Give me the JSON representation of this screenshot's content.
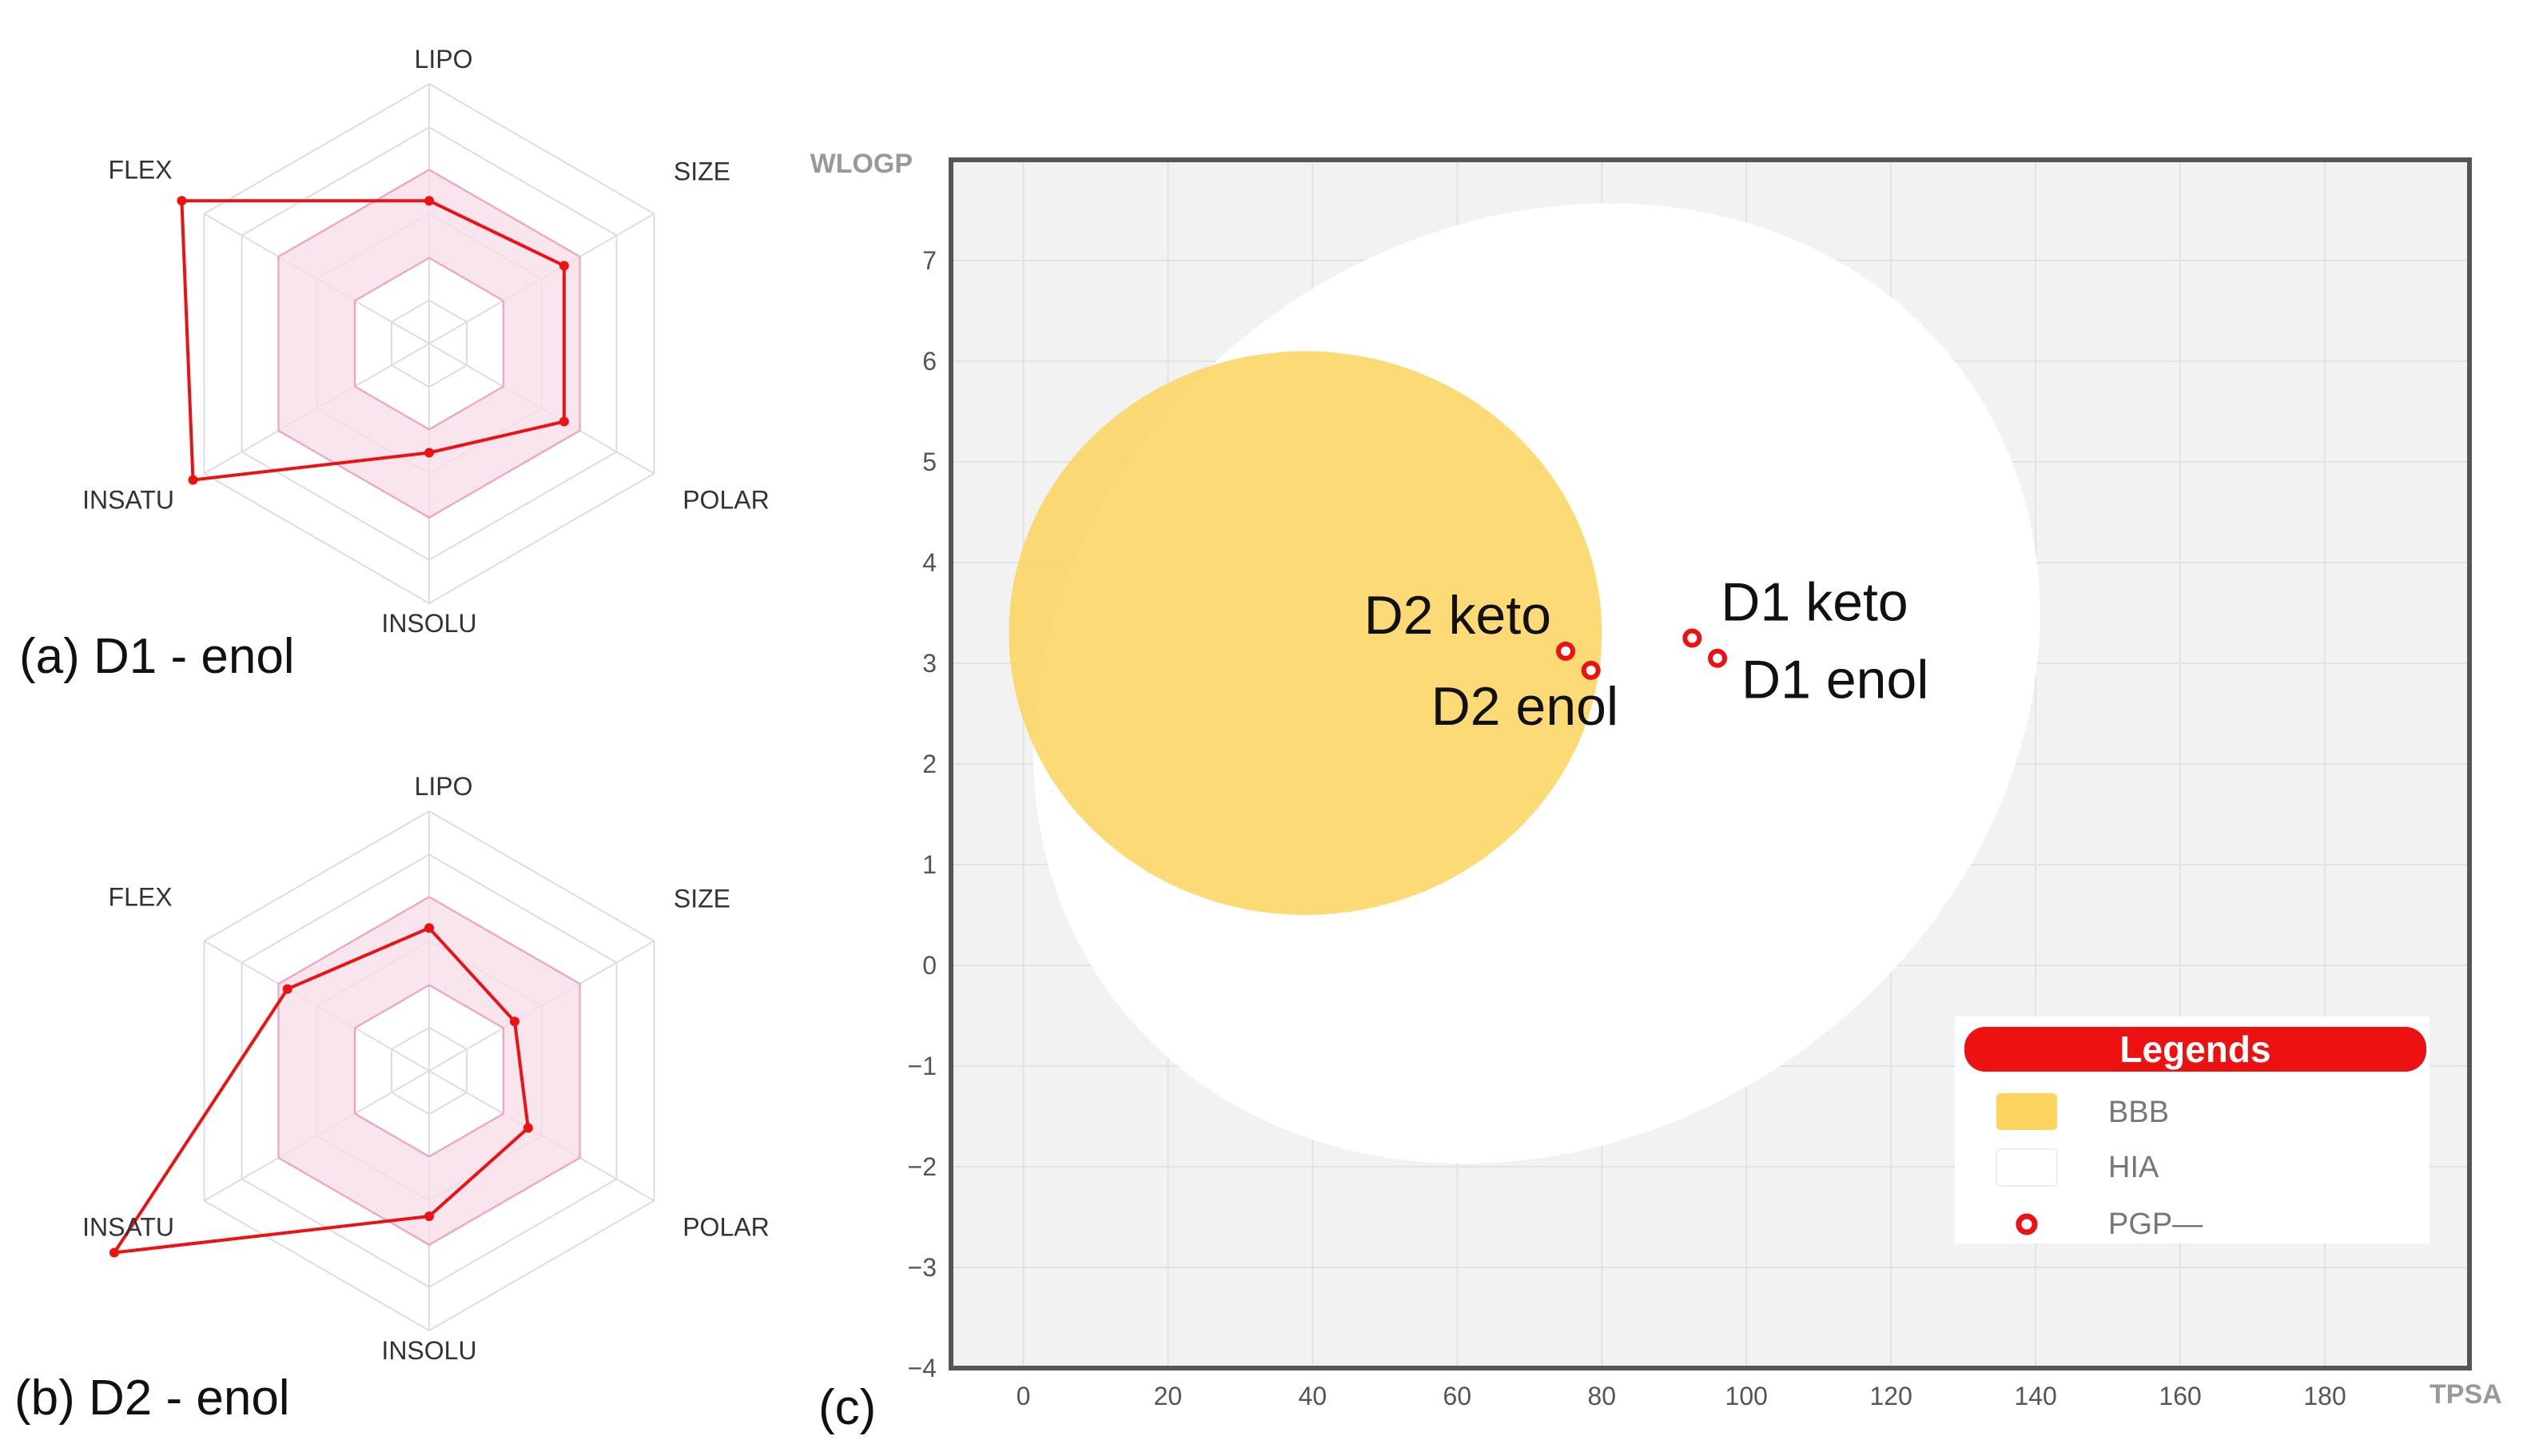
{
  "chart_data": [
    {
      "type": "radar",
      "panel_label": "(a) D1 - enol",
      "axes": [
        "LIPO",
        "SIZE",
        "POLAR",
        "INSOLU",
        "INSATU",
        "FLEX"
      ],
      "values": [
        0.55,
        0.6,
        0.6,
        0.42,
        1.05,
        1.1
      ],
      "optimal_range": [
        0.33,
        0.67
      ]
    },
    {
      "type": "radar",
      "panel_label": "(b) D2 - enol",
      "axes": [
        "LIPO",
        "SIZE",
        "POLAR",
        "INSOLU",
        "INSATU",
        "FLEX"
      ],
      "values": [
        0.55,
        0.38,
        0.44,
        0.56,
        1.4,
        0.63
      ],
      "optimal_range": [
        0.33,
        0.67
      ]
    },
    {
      "type": "scatter",
      "panel_label": "(c)",
      "xlabel": "TPSA",
      "ylabel": "WLOGP",
      "xlim": [
        -10,
        200
      ],
      "ylim": [
        -4,
        8
      ],
      "xticks": [
        0,
        20,
        40,
        60,
        80,
        100,
        120,
        140,
        160,
        180
      ],
      "yticks": [
        -4,
        -3,
        -2,
        -1,
        0,
        1,
        2,
        3,
        4,
        5,
        6,
        7
      ],
      "regions": [
        {
          "name": "HIA",
          "center": [
            71.0,
            2.8
          ],
          "semi_axis_x": 73,
          "semi_axis_y": 4.5,
          "angle_deg": -36,
          "color": "#ffffff"
        },
        {
          "name": "BBB",
          "center": [
            39.0,
            3.3
          ],
          "semi_axis_x": 41,
          "semi_axis_y": 2.8,
          "angle_deg": 0,
          "color": "#fcd45e"
        }
      ],
      "points": [
        {
          "label": "D2 keto",
          "x": 75.0,
          "y": 3.12,
          "label_side": "left-above"
        },
        {
          "label": "D2 enol",
          "x": 78.5,
          "y": 2.93,
          "label_side": "below"
        },
        {
          "label": "D1 keto",
          "x": 92.5,
          "y": 3.25,
          "label_side": "right-above"
        },
        {
          "label": "D1 enol",
          "x": 96.0,
          "y": 3.05,
          "label_side": "right-below"
        }
      ],
      "legend": {
        "title": "Legends",
        "position": "bottom-right",
        "entries": [
          {
            "label": "BBB",
            "swatch": "box",
            "color": "#fcd45e"
          },
          {
            "label": "HIA",
            "swatch": "box",
            "color": "#ffffff"
          },
          {
            "label": "PGP—",
            "swatch": "ring",
            "color": "#ee1111"
          }
        ]
      }
    }
  ],
  "colors": {
    "accent": "#ee1111",
    "radar_band": "#f8dfe8",
    "radar_band_stroke": "#ef9fba",
    "plot_background": "#f2f2f2",
    "grid": "#e2e2e2",
    "frame": "#555555",
    "bbb": "#fcd45e",
    "hia": "#ffffff"
  }
}
